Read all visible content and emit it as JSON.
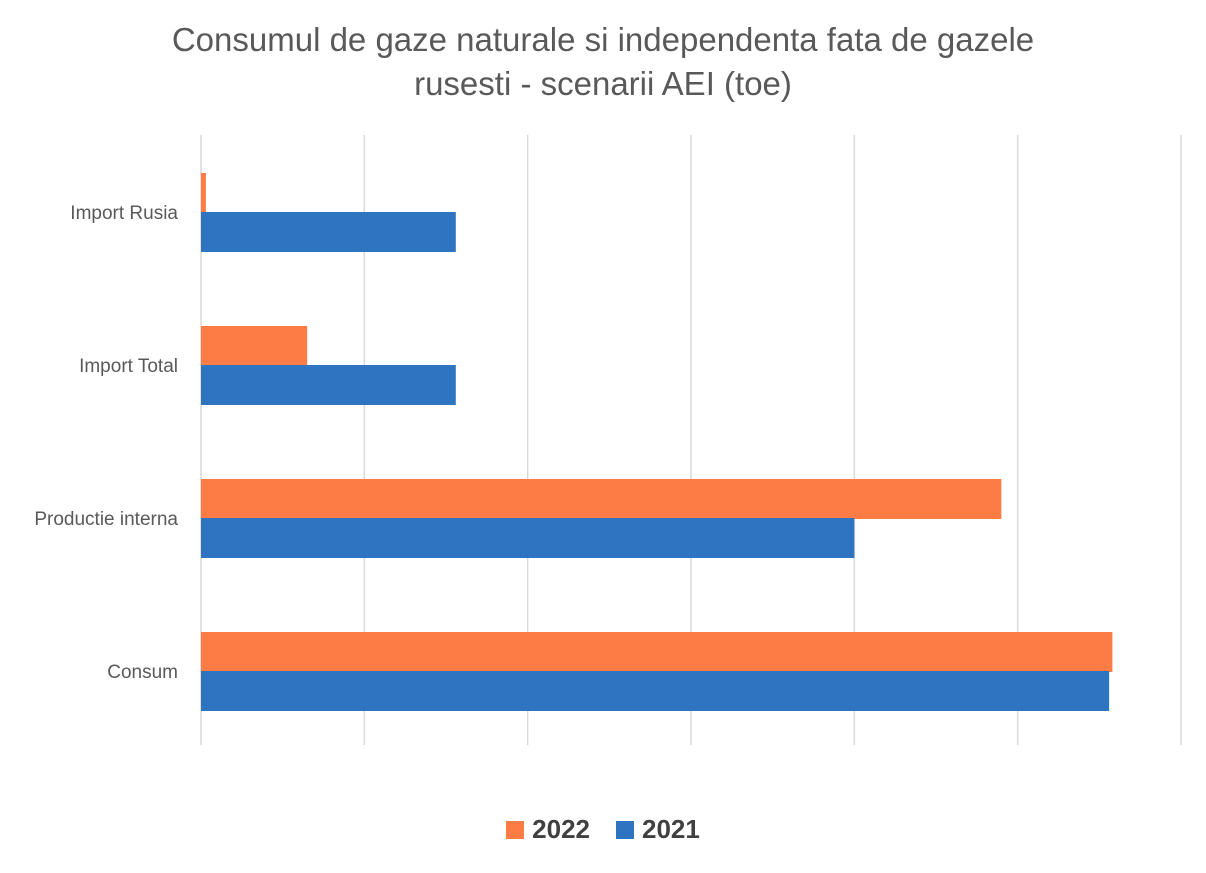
{
  "chart_data": {
    "type": "bar",
    "orientation": "horizontal",
    "title_lines": [
      "Consumul de gaze naturale si independenta fata de gazele",
      "rusesti - scenarii AEI (toe)"
    ],
    "categories": [
      "Import Rusia",
      "Import Total",
      "Productie interna",
      "Consum"
    ],
    "series": [
      {
        "name": "2022",
        "color": "#FD7C45",
        "values": [
          0.15,
          3.25,
          24.5,
          27.9
        ]
      },
      {
        "name": "2021",
        "color": "#2F74C1",
        "values": [
          7.8,
          7.8,
          20.0,
          27.8
        ]
      }
    ],
    "xlim": [
      0,
      30
    ],
    "x_tick_labels_shown": false,
    "grid": true,
    "legend_position": "bottom"
  }
}
